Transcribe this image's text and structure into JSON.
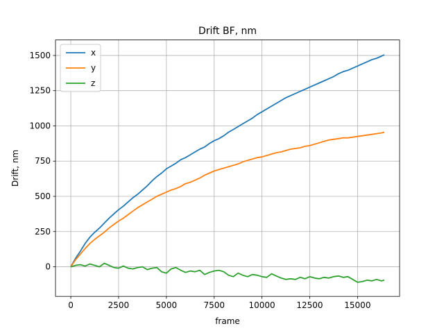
{
  "chart_data": {
    "type": "line",
    "title": "Drift BF, nm",
    "xlabel": "frame",
    "ylabel": "Drift, nm",
    "xlim": [
      -800,
      17200
    ],
    "ylim": [
      -210,
      1610
    ],
    "grid": true,
    "legend_position": "top-left",
    "xticks": [
      0,
      2500,
      5000,
      7500,
      10000,
      12500,
      15000
    ],
    "xtick_labels": [
      "0",
      "2500",
      "5000",
      "7500",
      "10000",
      "12500",
      "15000"
    ],
    "yticks": [
      0,
      250,
      500,
      750,
      1000,
      1250,
      1500
    ],
    "ytick_labels": [
      "0",
      "250",
      "500",
      "750",
      "1000",
      "1250",
      "1500"
    ],
    "x": [
      0,
      250,
      500,
      750,
      1000,
      1250,
      1500,
      1750,
      2000,
      2250,
      2500,
      2750,
      3000,
      3250,
      3500,
      3750,
      4000,
      4250,
      4500,
      4750,
      5000,
      5250,
      5500,
      5750,
      6000,
      6250,
      6500,
      6750,
      7000,
      7250,
      7500,
      7750,
      8000,
      8250,
      8500,
      8750,
      9000,
      9250,
      9500,
      9750,
      10000,
      10250,
      10500,
      10750,
      11000,
      11250,
      11500,
      11750,
      12000,
      12250,
      12500,
      12750,
      13000,
      13250,
      13500,
      13750,
      14000,
      14250,
      14500,
      14750,
      15000,
      15250,
      15500,
      15750,
      16000,
      16250,
      16400
    ],
    "series": [
      {
        "name": "x",
        "color": "#1f77b4",
        "values": [
          0,
          60,
          110,
          165,
          210,
          245,
          275,
          310,
          345,
          375,
          405,
          430,
          460,
          490,
          515,
          545,
          575,
          610,
          640,
          665,
          695,
          715,
          735,
          760,
          775,
          795,
          815,
          835,
          850,
          875,
          895,
          910,
          930,
          955,
          975,
          995,
          1015,
          1035,
          1055,
          1080,
          1100,
          1120,
          1140,
          1160,
          1180,
          1200,
          1215,
          1230,
          1245,
          1260,
          1275,
          1290,
          1305,
          1320,
          1335,
          1350,
          1370,
          1385,
          1395,
          1410,
          1425,
          1440,
          1455,
          1470,
          1480,
          1495,
          1505
        ]
      },
      {
        "name": "y",
        "color": "#ff7f0e",
        "values": [
          0,
          50,
          90,
          130,
          165,
          195,
          220,
          245,
          275,
          300,
          325,
          345,
          370,
          395,
          420,
          440,
          460,
          480,
          500,
          515,
          530,
          545,
          555,
          570,
          590,
          600,
          615,
          630,
          650,
          665,
          680,
          690,
          700,
          710,
          720,
          730,
          745,
          755,
          765,
          775,
          780,
          790,
          800,
          810,
          815,
          825,
          835,
          840,
          845,
          855,
          860,
          870,
          880,
          890,
          900,
          905,
          910,
          915,
          915,
          920,
          925,
          930,
          935,
          940,
          945,
          950,
          955
        ]
      },
      {
        "name": "z",
        "color": "#2ca02c",
        "values": [
          0,
          10,
          15,
          5,
          20,
          10,
          0,
          25,
          10,
          -5,
          -10,
          5,
          -10,
          -15,
          -5,
          0,
          -20,
          -10,
          -5,
          -35,
          -45,
          -15,
          -5,
          -25,
          -40,
          -30,
          -35,
          -25,
          -55,
          -40,
          -30,
          -25,
          -35,
          -60,
          -70,
          -45,
          -60,
          -70,
          -55,
          -60,
          -70,
          -75,
          -50,
          -65,
          -80,
          -90,
          -85,
          -90,
          -75,
          -85,
          -70,
          -80,
          -85,
          -75,
          -80,
          -70,
          -65,
          -75,
          -70,
          -90,
          -110,
          -105,
          -95,
          -100,
          -90,
          -100,
          -95
        ]
      }
    ]
  }
}
